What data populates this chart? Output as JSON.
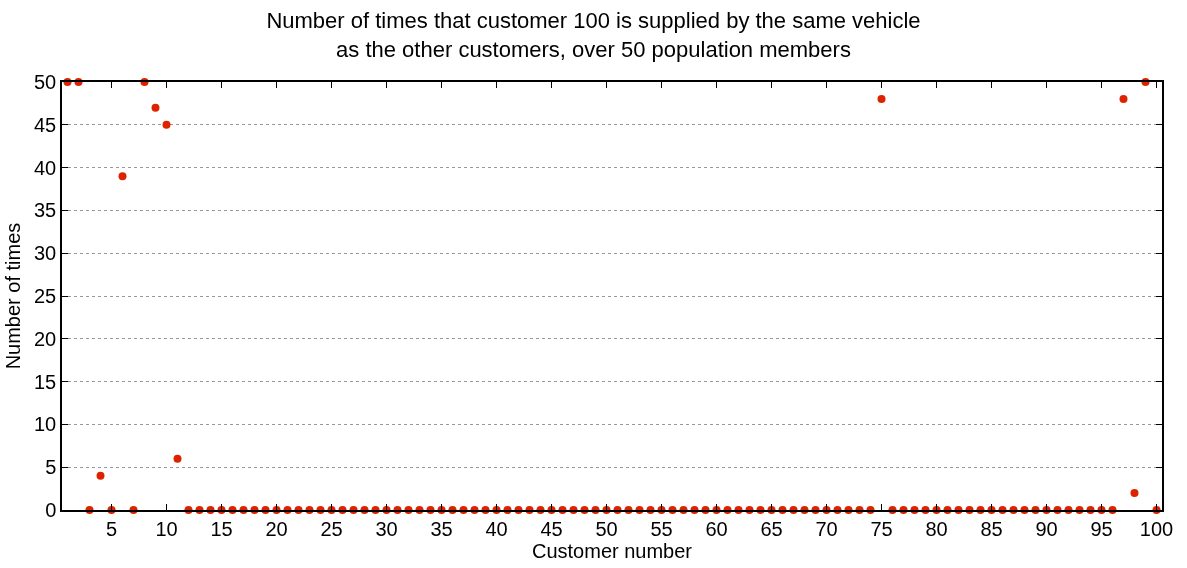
{
  "chart_data": {
    "type": "scatter",
    "title": "Number of times that customer 100 is supplied by the same vehicle\nas the other customers, over 50 population members",
    "xlabel": "Customer number",
    "ylabel": "Number of times",
    "x": [
      1,
      2,
      3,
      4,
      5,
      6,
      7,
      8,
      9,
      10,
      11,
      12,
      13,
      14,
      15,
      16,
      17,
      18,
      19,
      20,
      21,
      22,
      23,
      24,
      25,
      26,
      27,
      28,
      29,
      30,
      31,
      32,
      33,
      34,
      35,
      36,
      37,
      38,
      39,
      40,
      41,
      42,
      43,
      44,
      45,
      46,
      47,
      48,
      49,
      50,
      51,
      52,
      53,
      54,
      55,
      56,
      57,
      58,
      59,
      60,
      61,
      62,
      63,
      64,
      65,
      66,
      67,
      68,
      69,
      70,
      71,
      72,
      73,
      74,
      75,
      76,
      77,
      78,
      79,
      80,
      81,
      82,
      83,
      84,
      85,
      86,
      87,
      88,
      89,
      90,
      91,
      92,
      93,
      94,
      95,
      96,
      97,
      98,
      99,
      100
    ],
    "series": [
      {
        "color": "#dd2200",
        "values": [
          50,
          50,
          0,
          4,
          0,
          39,
          0,
          50,
          47,
          45,
          6,
          0,
          0,
          0,
          0,
          0,
          0,
          0,
          0,
          0,
          0,
          0,
          0,
          0,
          0,
          0,
          0,
          0,
          0,
          0,
          0,
          0,
          0,
          0,
          0,
          0,
          0,
          0,
          0,
          0,
          0,
          0,
          0,
          0,
          0,
          0,
          0,
          0,
          0,
          0,
          0,
          0,
          0,
          0,
          0,
          0,
          0,
          0,
          0,
          0,
          0,
          0,
          0,
          0,
          0,
          0,
          0,
          0,
          0,
          0,
          0,
          0,
          0,
          0,
          48,
          0,
          0,
          0,
          0,
          0,
          0,
          0,
          0,
          0,
          0,
          0,
          0,
          0,
          0,
          0,
          0,
          0,
          0,
          0,
          0,
          0,
          48,
          2,
          50,
          0
        ]
      }
    ],
    "xlim": [
      0.5,
      100.5
    ],
    "xticks": [
      5,
      10,
      15,
      20,
      25,
      30,
      35,
      40,
      45,
      50,
      55,
      60,
      65,
      70,
      75,
      80,
      85,
      90,
      95,
      100
    ],
    "ylim": [
      0,
      50
    ],
    "yticks": [
      0,
      5,
      10,
      15,
      20,
      25,
      30,
      35,
      40,
      45,
      50
    ],
    "grid": "y",
    "marker": "circle"
  }
}
